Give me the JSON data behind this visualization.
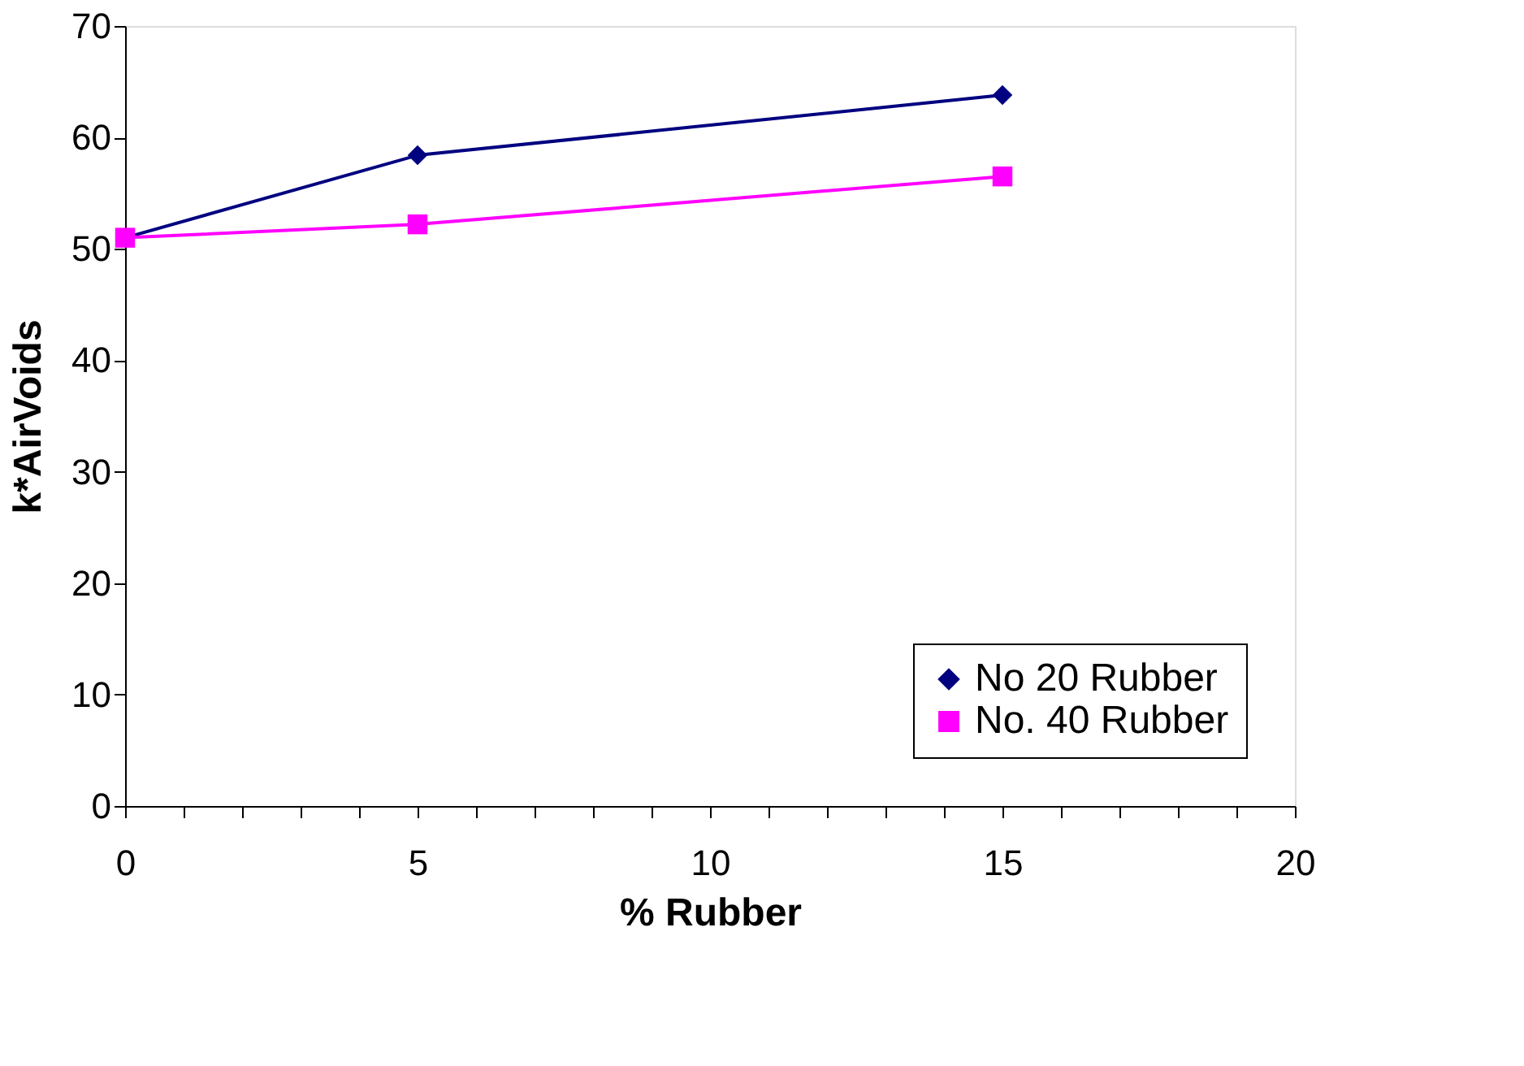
{
  "chart_data": {
    "type": "line",
    "xlabel": "% Rubber",
    "ylabel": "k*AirVoids",
    "x": [
      0,
      5,
      15
    ],
    "series": [
      {
        "name": "No 20 Rubber",
        "color": "#000080",
        "values": [
          51,
          58.4,
          63.8
        ],
        "marker": "diamond"
      },
      {
        "name": "No. 40 Rubber",
        "color": "#ff00ff",
        "values": [
          51,
          52.2,
          56.5
        ],
        "marker": "square"
      }
    ],
    "xlim": [
      0,
      20
    ],
    "xticks": [
      0,
      {
        "value": 1,
        "label": null
      },
      {
        "value": 2,
        "label": null
      },
      {
        "value": 3,
        "label": null
      },
      {
        "value": 4,
        "label": null
      },
      5,
      {
        "value": 6,
        "label": null
      },
      {
        "value": 7,
        "label": null
      },
      {
        "value": 8,
        "label": null
      },
      {
        "value": 9,
        "label": null
      },
      10,
      {
        "value": 11,
        "label": null
      },
      {
        "value": 12,
        "label": null
      },
      {
        "value": 13,
        "label": null
      },
      {
        "value": 14,
        "label": null
      },
      15,
      {
        "value": 16,
        "label": null
      },
      {
        "value": 17,
        "label": null
      },
      {
        "value": 18,
        "label": null
      },
      {
        "value": 19,
        "label": null
      },
      20
    ],
    "ylim": [
      0,
      70
    ],
    "yticks": [
      0,
      10,
      20,
      30,
      40,
      50,
      60,
      70
    ],
    "grid": false,
    "legend": "bottom right",
    "line_style": "solid"
  }
}
